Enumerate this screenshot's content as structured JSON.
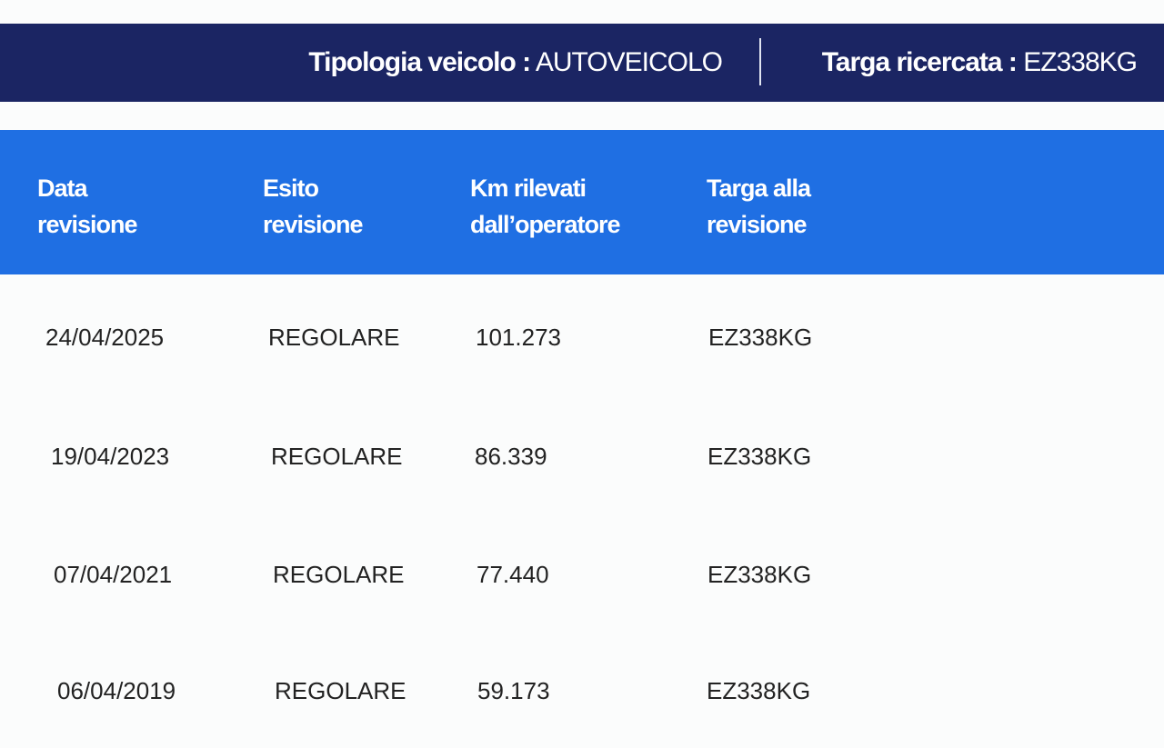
{
  "vehicle_info": {
    "type_label": "Tipologia veicolo :",
    "type_value": "AUTOVEICOLO",
    "plate_label": "Targa ricercata :",
    "plate_value": "EZ338KG"
  },
  "colors": {
    "navy": "#1b2563",
    "table_header": "#1f6fe3"
  },
  "table": {
    "headers": [
      {
        "line1": "Data",
        "line2": "revisione"
      },
      {
        "line1": "Esito",
        "line2": "revisione"
      },
      {
        "line1": "Km rilevati",
        "line2": "dall’operatore"
      },
      {
        "line1": "Targa alla",
        "line2": "revisione"
      }
    ],
    "rows": [
      {
        "date": "24/04/2025",
        "result": "REGOLARE",
        "km": "101.273",
        "plate": "EZ338KG"
      },
      {
        "date": "19/04/2023",
        "result": "REGOLARE",
        "km": "86.339",
        "plate": "EZ338KG"
      },
      {
        "date": "07/04/2021",
        "result": "REGOLARE",
        "km": "77.440",
        "plate": "EZ338KG"
      },
      {
        "date": "06/04/2019",
        "result": "REGOLARE",
        "km": "59.173",
        "plate": "EZ338KG"
      }
    ]
  }
}
